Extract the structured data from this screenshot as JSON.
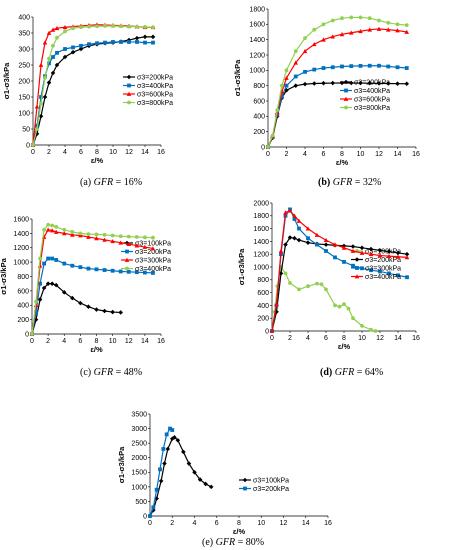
{
  "captions": [
    {
      "label": "(a)",
      "var": "GFR",
      "eq": "= 16%"
    },
    {
      "label": "(b)",
      "var": "GFR",
      "eq": "= 32%"
    },
    {
      "label": "(c)",
      "var": "GFR",
      "eq": "= 48%"
    },
    {
      "label": "(d)",
      "var": "GFR",
      "eq": "= 64%"
    },
    {
      "label": "(e)",
      "var": "GFR",
      "eq": "= 80%"
    }
  ],
  "colors": {
    "black": "#000000",
    "blue": "#0070C0",
    "red": "#FF0000",
    "green": "#92D050"
  },
  "chart_data": [
    {
      "type": "line",
      "xlabel": "ε/%",
      "ylabel": "σ1-σ3/kPa",
      "xlim": [
        0,
        16
      ],
      "ylim": [
        0,
        400
      ],
      "xticks": [
        0,
        2,
        4,
        6,
        8,
        10,
        12,
        14,
        16
      ],
      "yticks": [
        0,
        50,
        100,
        150,
        200,
        250,
        300,
        350,
        400
      ],
      "series": [
        {
          "name": "σ3=200kPa",
          "color": "black",
          "marker": "diamond",
          "x": [
            0,
            0.5,
            1,
            1.5,
            2,
            2.5,
            3,
            4,
            5,
            6,
            7,
            8,
            9,
            10,
            11,
            12,
            13,
            14,
            15
          ],
          "y": [
            0,
            35,
            90,
            150,
            195,
            225,
            250,
            275,
            290,
            300,
            310,
            315,
            318,
            320,
            323,
            328,
            334,
            338,
            338
          ]
        },
        {
          "name": "σ3=400kPa",
          "color": "blue",
          "marker": "square",
          "x": [
            0,
            0.5,
            1,
            1.5,
            2,
            2.5,
            3,
            4,
            5,
            6,
            7,
            8,
            9,
            10,
            11,
            12,
            13,
            14,
            15
          ],
          "y": [
            0,
            60,
            150,
            215,
            255,
            275,
            288,
            300,
            305,
            310,
            315,
            318,
            320,
            322,
            322,
            322,
            322,
            320,
            320
          ]
        },
        {
          "name": "σ3=600kPa",
          "color": "red",
          "marker": "triangle",
          "x": [
            0,
            0.5,
            1,
            1.5,
            2,
            2.5,
            3,
            4,
            5,
            6,
            7,
            8,
            9,
            10,
            11,
            12,
            13,
            14,
            15
          ],
          "y": [
            0,
            120,
            250,
            320,
            350,
            360,
            365,
            368,
            370,
            372,
            374,
            376,
            375,
            374,
            373,
            372,
            370,
            368,
            368
          ]
        },
        {
          "name": "σ3=800kPa",
          "color": "green",
          "marker": "circle",
          "x": [
            0,
            0.5,
            1,
            1.5,
            2,
            2.5,
            3,
            4,
            5,
            6,
            7,
            8,
            9,
            10,
            11,
            12,
            13,
            14,
            15
          ],
          "y": [
            0,
            50,
            130,
            210,
            270,
            310,
            335,
            355,
            365,
            368,
            370,
            371,
            372,
            372,
            371,
            370,
            370,
            369,
            368
          ]
        }
      ]
    },
    {
      "type": "line",
      "xlabel": "ε/%",
      "ylabel": "σ1-σ3/kPa",
      "xlim": [
        0,
        16
      ],
      "ylim": [
        0,
        1800
      ],
      "xticks": [
        0,
        2,
        4,
        6,
        8,
        10,
        12,
        14,
        16
      ],
      "yticks": [
        0,
        200,
        400,
        600,
        800,
        1000,
        1200,
        1400,
        1600,
        1800
      ],
      "series": [
        {
          "name": "σ3=200kPa",
          "color": "black",
          "marker": "diamond",
          "x": [
            0,
            0.5,
            1,
            1.5,
            2,
            3,
            4,
            5,
            6,
            7,
            8,
            9,
            10,
            11,
            12,
            13,
            14,
            15
          ],
          "y": [
            0,
            120,
            400,
            640,
            740,
            800,
            820,
            828,
            832,
            834,
            835,
            835,
            834,
            832,
            830,
            828,
            826,
            825
          ]
        },
        {
          "name": "σ3=400kPa",
          "color": "blue",
          "marker": "square",
          "x": [
            0,
            0.5,
            1,
            1.5,
            2,
            3,
            4,
            5,
            6,
            7,
            8,
            9,
            10,
            11,
            12,
            13,
            14,
            15
          ],
          "y": [
            0,
            130,
            420,
            660,
            800,
            920,
            980,
            1010,
            1030,
            1040,
            1050,
            1055,
            1058,
            1060,
            1060,
            1050,
            1040,
            1030
          ]
        },
        {
          "name": "σ3=600kPa",
          "color": "red",
          "marker": "triangle",
          "x": [
            0,
            0.5,
            1,
            1.5,
            2,
            3,
            4,
            5,
            6,
            7,
            8,
            9,
            10,
            11,
            12,
            13,
            14,
            15
          ],
          "y": [
            0,
            140,
            450,
            720,
            900,
            1100,
            1250,
            1340,
            1400,
            1440,
            1470,
            1490,
            1510,
            1530,
            1540,
            1530,
            1520,
            1500
          ]
        },
        {
          "name": "σ3=800kPa",
          "color": "green",
          "marker": "circle",
          "x": [
            0,
            0.5,
            1,
            1.5,
            2,
            3,
            4,
            5,
            6,
            7,
            8,
            9,
            10,
            11,
            12,
            13,
            14,
            15
          ],
          "y": [
            0,
            150,
            480,
            800,
            1000,
            1250,
            1420,
            1530,
            1600,
            1650,
            1680,
            1690,
            1690,
            1680,
            1650,
            1620,
            1600,
            1590
          ]
        }
      ]
    },
    {
      "type": "line",
      "xlabel": "ε/%",
      "ylabel": "σ1-σ3/kPa",
      "xlim": [
        0,
        16
      ],
      "ylim": [
        0,
        1600
      ],
      "xticks": [
        0,
        2,
        4,
        6,
        8,
        10,
        12,
        14,
        16
      ],
      "yticks": [
        0,
        200,
        400,
        600,
        800,
        1000,
        1200,
        1400,
        1600
      ],
      "series": [
        {
          "name": "σ3=100kPa",
          "color": "black",
          "marker": "diamond",
          "x": [
            0,
            0.5,
            1,
            1.5,
            2,
            2.5,
            3,
            4,
            5,
            6,
            7,
            8,
            9,
            10,
            11
          ],
          "y": [
            0,
            200,
            480,
            640,
            700,
            700,
            680,
            580,
            500,
            430,
            380,
            340,
            320,
            305,
            300
          ]
        },
        {
          "name": "σ3=200kPa",
          "color": "blue",
          "marker": "square",
          "x": [
            0,
            0.5,
            1,
            1.5,
            2,
            2.5,
            3,
            4,
            5,
            6,
            7,
            8,
            9,
            10,
            11,
            12,
            13,
            14,
            15
          ],
          "y": [
            0,
            300,
            700,
            980,
            1050,
            1050,
            1030,
            980,
            950,
            930,
            910,
            900,
            890,
            880,
            870,
            865,
            860,
            855,
            850
          ]
        },
        {
          "name": "σ3=300kPa",
          "color": "red",
          "marker": "triangle",
          "x": [
            0,
            0.5,
            1,
            1.5,
            2,
            2.5,
            3,
            4,
            5,
            6,
            7,
            8,
            9,
            10,
            11,
            12,
            13,
            14,
            15
          ],
          "y": [
            0,
            400,
            950,
            1350,
            1450,
            1440,
            1420,
            1400,
            1380,
            1370,
            1350,
            1330,
            1310,
            1290,
            1270,
            1250,
            1230,
            1210,
            1190
          ]
        },
        {
          "name": "σ3=400kPa",
          "color": "green",
          "marker": "circle",
          "x": [
            0,
            0.5,
            1,
            1.5,
            2,
            2.5,
            3,
            4,
            5,
            6,
            7,
            8,
            9,
            10,
            11,
            12,
            13,
            14,
            15
          ],
          "y": [
            0,
            450,
            1050,
            1450,
            1520,
            1510,
            1490,
            1450,
            1420,
            1400,
            1390,
            1385,
            1380,
            1370,
            1360,
            1355,
            1350,
            1345,
            1340
          ]
        }
      ]
    },
    {
      "type": "line",
      "xlabel": "ε/%",
      "ylabel": "σ1-σ3/kPa",
      "xlim": [
        0,
        16
      ],
      "ylim": [
        0,
        2000
      ],
      "xticks": [
        0,
        2,
        4,
        6,
        8,
        10,
        12,
        14,
        16
      ],
      "yticks": [
        0,
        200,
        400,
        600,
        800,
        1000,
        1200,
        1400,
        1600,
        1800,
        2000
      ],
      "series": [
        {
          "name": "σ3=100kPa",
          "color": "green",
          "marker": "circle",
          "x": [
            0,
            0.3,
            0.6,
            1,
            1.5,
            2,
            3,
            4,
            5,
            5.5,
            6,
            7,
            7.5,
            8,
            8.5,
            9,
            10,
            11,
            11.5
          ],
          "y": [
            0,
            300,
            700,
            1000,
            900,
            750,
            650,
            700,
            740,
            730,
            650,
            400,
            380,
            420,
            350,
            200,
            80,
            20,
            0
          ]
        },
        {
          "name": "σ3=200kPa",
          "color": "black",
          "marker": "diamond",
          "x": [
            0,
            0.5,
            1,
            1.5,
            2,
            2.5,
            3,
            4,
            5,
            6,
            7,
            8,
            9,
            10,
            11,
            12,
            13,
            14,
            15
          ],
          "y": [
            0,
            300,
            900,
            1350,
            1460,
            1450,
            1420,
            1380,
            1360,
            1350,
            1340,
            1330,
            1320,
            1300,
            1280,
            1260,
            1240,
            1220,
            1200
          ]
        },
        {
          "name": "σ3=300kPa",
          "color": "blue",
          "marker": "square",
          "x": [
            0,
            0.5,
            1,
            1.5,
            2,
            2.5,
            3,
            4,
            5,
            6,
            7,
            8,
            9,
            10,
            11,
            12,
            13,
            14,
            15
          ],
          "y": [
            0,
            400,
            1200,
            1800,
            1900,
            1750,
            1600,
            1450,
            1350,
            1250,
            1150,
            1080,
            1020,
            980,
            950,
            930,
            900,
            870,
            840
          ]
        },
        {
          "name": "σ3=400kPa",
          "color": "red",
          "marker": "triangle",
          "x": [
            0,
            0.5,
            1,
            1.5,
            2,
            2.5,
            3,
            4,
            5,
            6,
            7,
            8,
            9,
            10,
            11,
            12,
            13,
            14,
            15
          ],
          "y": [
            0,
            420,
            1250,
            1850,
            1880,
            1800,
            1720,
            1600,
            1500,
            1420,
            1350,
            1300,
            1250,
            1220,
            1200,
            1180,
            1170,
            1160,
            1150
          ]
        }
      ]
    },
    {
      "type": "line",
      "xlabel": "ε/%",
      "ylabel": "σ1-σ3/kPa",
      "xlim": [
        0,
        16
      ],
      "ylim": [
        0,
        3500
      ],
      "xticks": [
        0,
        2,
        4,
        6,
        8,
        10,
        12,
        14,
        16
      ],
      "yticks": [
        0,
        500,
        1000,
        1500,
        2000,
        2500,
        3000,
        3500
      ],
      "series": [
        {
          "name": "σ3=100kPa",
          "color": "black",
          "marker": "diamond",
          "x": [
            0,
            0.3,
            0.6,
            1,
            1.3,
            1.6,
            2,
            2.2,
            2.5,
            3,
            3.5,
            4,
            4.5,
            5,
            5.5
          ],
          "y": [
            0,
            200,
            600,
            1200,
            1800,
            2300,
            2650,
            2700,
            2600,
            2200,
            1800,
            1500,
            1250,
            1100,
            1000
          ]
        },
        {
          "name": "σ3=200kPa",
          "color": "blue",
          "marker": "square",
          "x": [
            0,
            0.3,
            0.6,
            0.9,
            1.2,
            1.5,
            1.8,
            2
          ],
          "y": [
            0,
            300,
            900,
            1600,
            2300,
            2800,
            3000,
            2950
          ]
        }
      ]
    }
  ]
}
